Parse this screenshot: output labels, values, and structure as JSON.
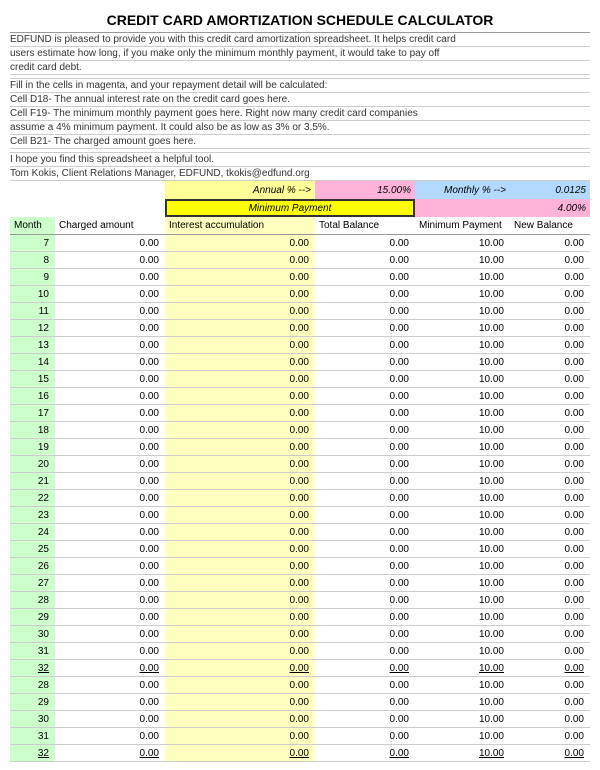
{
  "title": "CREDIT CARD AMORTIZATION SCHEDULE CALCULATOR",
  "intro": [
    "EDFUND is pleased to provide you with this credit card amortization spreadsheet. It helps credit card",
    "users estimate how long, if you make only the minimum monthly payment, it would take to pay off",
    "credit card debt."
  ],
  "instructions": [
    "Fill in the cells in magenta, and your repayment detail will be calculated:",
    "Cell  D18- The  annual interest rate on the credit card goes here.",
    "Cell  F19- The minimum monthly payment goes here.  Right now many credit card companies",
    "              assume a 4% minimum payment.  It could also be as low as 3% or 3.5%.",
    "Cell  B21- The charged amount goes here."
  ],
  "closing": [
    "I hope you find this spreadsheet a helpful tool.",
    "Tom Kokis, Client Relations Manager, EDFUND, tkokis@edfund.org"
  ],
  "rateRow1": {
    "annualLabel": "Annual % -->",
    "annualRate": "15.00%",
    "monthlyLabel": "Monthly % -->",
    "monthlyRate": "0.0125"
  },
  "rateRow2": {
    "minPayLabel": "Minimum Payment",
    "minPayValue": "4.00%"
  },
  "headers": {
    "c1": "Month",
    "c2": "Charged amount",
    "c3": "Interest accumulation",
    "c4": "Total Balance",
    "c5": "Minimum Payment",
    "c6": "New Balance"
  },
  "colors": {
    "yellow_highlight": "#ffff99",
    "yellow_bright": "#ffff00",
    "yellow_cell": "#ffffc0",
    "magenta": "#ffb3d9",
    "blue": "#b3d9ff",
    "green": "#ccffcc"
  },
  "rows": [
    {
      "m": "7",
      "ca": "0.00",
      "ia": "0.00",
      "tb": "0.00",
      "mp": "10.00",
      "nb": "0.00",
      "u": false
    },
    {
      "m": "8",
      "ca": "0.00",
      "ia": "0.00",
      "tb": "0.00",
      "mp": "10.00",
      "nb": "0.00",
      "u": false
    },
    {
      "m": "9",
      "ca": "0.00",
      "ia": "0.00",
      "tb": "0.00",
      "mp": "10.00",
      "nb": "0.00",
      "u": false
    },
    {
      "m": "10",
      "ca": "0.00",
      "ia": "0.00",
      "tb": "0.00",
      "mp": "10.00",
      "nb": "0.00",
      "u": false
    },
    {
      "m": "11",
      "ca": "0.00",
      "ia": "0.00",
      "tb": "0.00",
      "mp": "10.00",
      "nb": "0.00",
      "u": false
    },
    {
      "m": "12",
      "ca": "0.00",
      "ia": "0.00",
      "tb": "0.00",
      "mp": "10.00",
      "nb": "0.00",
      "u": false
    },
    {
      "m": "13",
      "ca": "0.00",
      "ia": "0.00",
      "tb": "0.00",
      "mp": "10.00",
      "nb": "0.00",
      "u": false
    },
    {
      "m": "14",
      "ca": "0.00",
      "ia": "0.00",
      "tb": "0.00",
      "mp": "10.00",
      "nb": "0.00",
      "u": false
    },
    {
      "m": "15",
      "ca": "0.00",
      "ia": "0.00",
      "tb": "0.00",
      "mp": "10.00",
      "nb": "0.00",
      "u": false
    },
    {
      "m": "16",
      "ca": "0.00",
      "ia": "0.00",
      "tb": "0.00",
      "mp": "10.00",
      "nb": "0.00",
      "u": false
    },
    {
      "m": "17",
      "ca": "0.00",
      "ia": "0.00",
      "tb": "0.00",
      "mp": "10.00",
      "nb": "0.00",
      "u": false
    },
    {
      "m": "18",
      "ca": "0.00",
      "ia": "0.00",
      "tb": "0.00",
      "mp": "10.00",
      "nb": "0.00",
      "u": false
    },
    {
      "m": "19",
      "ca": "0.00",
      "ia": "0.00",
      "tb": "0.00",
      "mp": "10.00",
      "nb": "0.00",
      "u": false
    },
    {
      "m": "20",
      "ca": "0.00",
      "ia": "0.00",
      "tb": "0.00",
      "mp": "10.00",
      "nb": "0.00",
      "u": false
    },
    {
      "m": "21",
      "ca": "0.00",
      "ia": "0.00",
      "tb": "0.00",
      "mp": "10.00",
      "nb": "0.00",
      "u": false
    },
    {
      "m": "22",
      "ca": "0.00",
      "ia": "0.00",
      "tb": "0.00",
      "mp": "10.00",
      "nb": "0.00",
      "u": false
    },
    {
      "m": "23",
      "ca": "0.00",
      "ia": "0.00",
      "tb": "0.00",
      "mp": "10.00",
      "nb": "0.00",
      "u": false
    },
    {
      "m": "24",
      "ca": "0.00",
      "ia": "0.00",
      "tb": "0.00",
      "mp": "10.00",
      "nb": "0.00",
      "u": false
    },
    {
      "m": "25",
      "ca": "0.00",
      "ia": "0.00",
      "tb": "0.00",
      "mp": "10.00",
      "nb": "0.00",
      "u": false
    },
    {
      "m": "26",
      "ca": "0.00",
      "ia": "0.00",
      "tb": "0.00",
      "mp": "10.00",
      "nb": "0.00",
      "u": false
    },
    {
      "m": "27",
      "ca": "0.00",
      "ia": "0.00",
      "tb": "0.00",
      "mp": "10.00",
      "nb": "0.00",
      "u": false
    },
    {
      "m": "28",
      "ca": "0.00",
      "ia": "0.00",
      "tb": "0.00",
      "mp": "10.00",
      "nb": "0.00",
      "u": false
    },
    {
      "m": "29",
      "ca": "0.00",
      "ia": "0.00",
      "tb": "0.00",
      "mp": "10.00",
      "nb": "0.00",
      "u": false
    },
    {
      "m": "30",
      "ca": "0.00",
      "ia": "0.00",
      "tb": "0.00",
      "mp": "10.00",
      "nb": "0.00",
      "u": false
    },
    {
      "m": "31",
      "ca": "0.00",
      "ia": "0.00",
      "tb": "0.00",
      "mp": "10.00",
      "nb": "0.00",
      "u": false
    },
    {
      "m": "32",
      "ca": "0.00",
      "ia": "0.00",
      "tb": "0.00",
      "mp": "10.00",
      "nb": "0.00",
      "u": true
    },
    {
      "m": "28",
      "ca": "0.00",
      "ia": "0.00",
      "tb": "0.00",
      "mp": "10.00",
      "nb": "0.00",
      "u": false
    },
    {
      "m": "29",
      "ca": "0.00",
      "ia": "0.00",
      "tb": "0.00",
      "mp": "10.00",
      "nb": "0.00",
      "u": false
    },
    {
      "m": "30",
      "ca": "0.00",
      "ia": "0.00",
      "tb": "0.00",
      "mp": "10.00",
      "nb": "0.00",
      "u": false
    },
    {
      "m": "31",
      "ca": "0.00",
      "ia": "0.00",
      "tb": "0.00",
      "mp": "10.00",
      "nb": "0.00",
      "u": false
    },
    {
      "m": "32",
      "ca": "0.00",
      "ia": "0.00",
      "tb": "0.00",
      "mp": "10.00",
      "nb": "0.00",
      "u": true
    }
  ]
}
